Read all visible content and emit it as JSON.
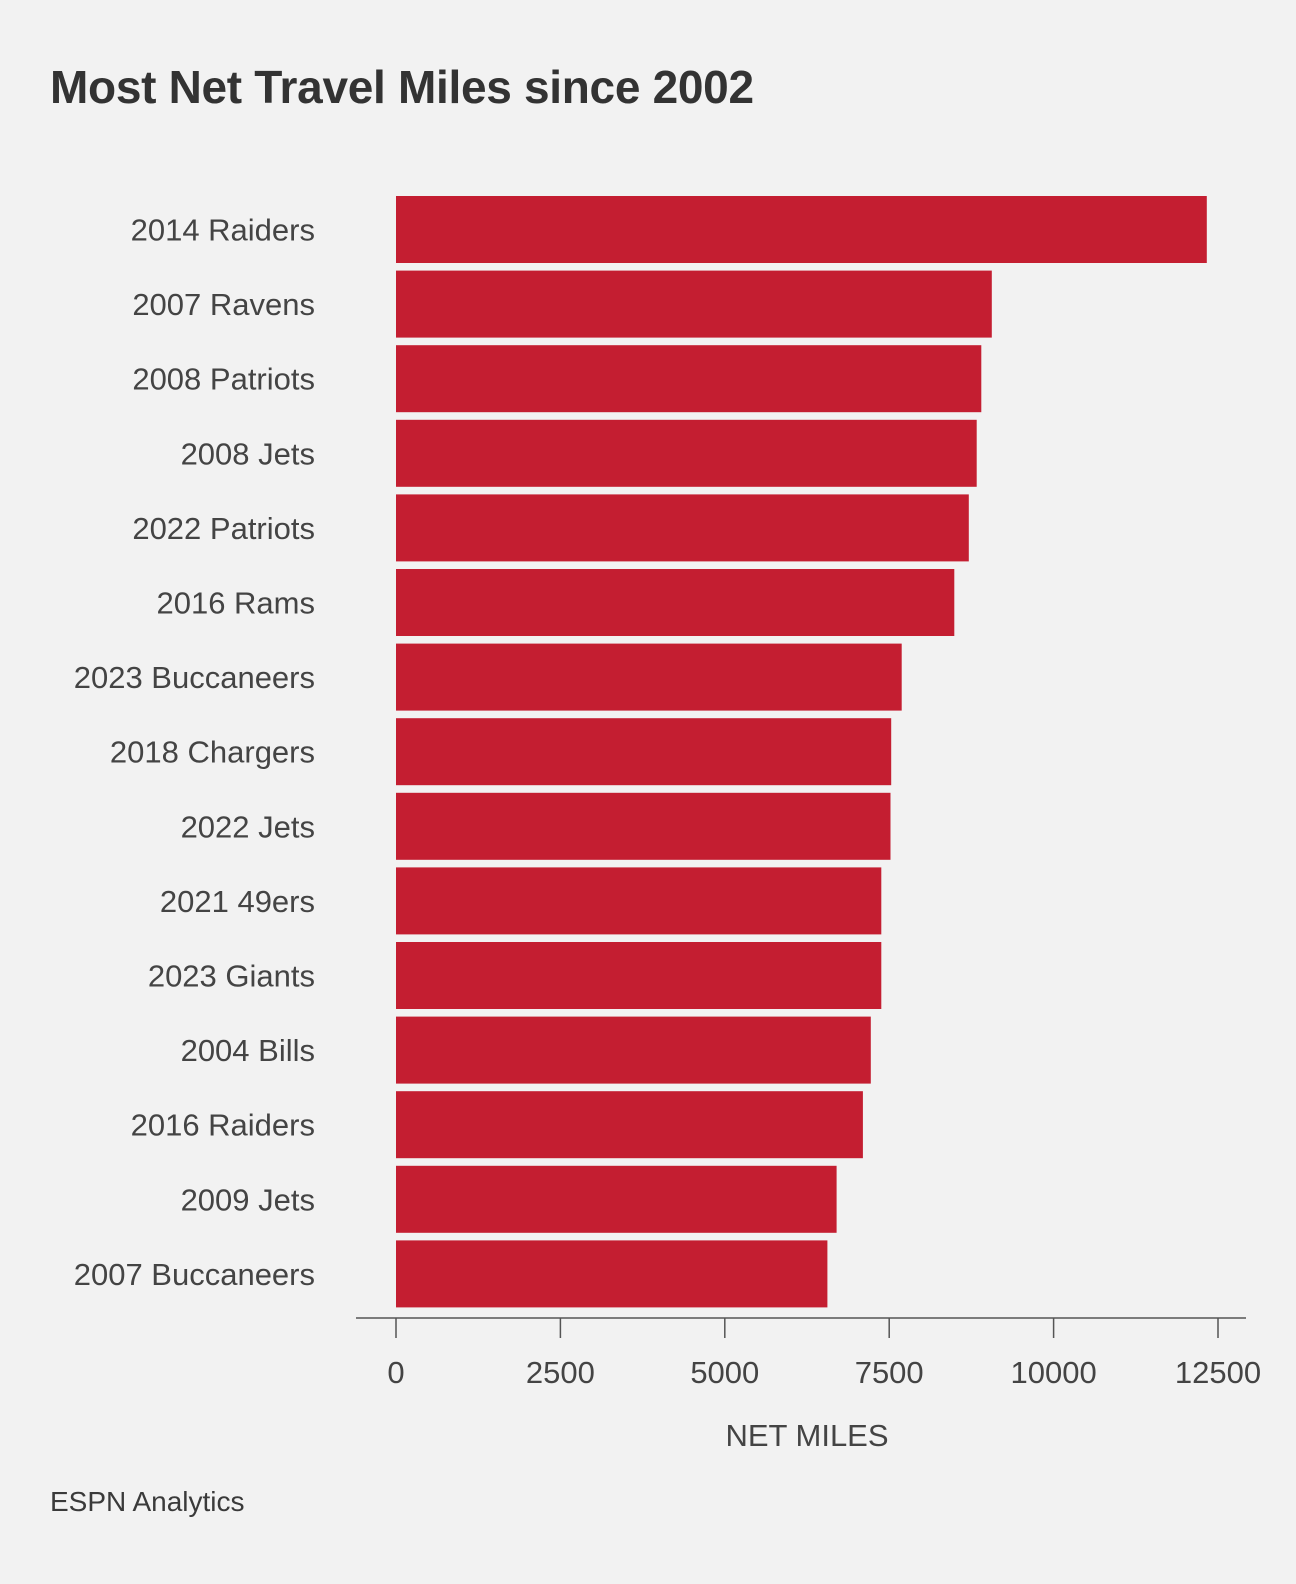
{
  "title": "Most Net Travel Miles since 2002",
  "source": "ESPN Analytics",
  "colors": {
    "bar": "#c41e31",
    "text": "#444444",
    "axis": "#555555",
    "background": "#f2f2f2"
  },
  "chart_data": {
    "type": "bar",
    "orientation": "horizontal",
    "title": "Most Net Travel Miles since 2002",
    "xlabel": "NET MILES",
    "ylabel": "",
    "xlim": [
      0,
      12500
    ],
    "x_ticks": [
      "0",
      "2500",
      "5000",
      "7500",
      "10000",
      "12500"
    ],
    "grid": false,
    "categories": [
      "2014 Raiders",
      "2007 Ravens",
      "2008 Patriots",
      "2008 Jets",
      "2022 Patriots",
      "2016 Rams",
      "2023 Buccaneers",
      "2018 Chargers",
      "2022 Jets",
      "2021 49ers",
      "2023 Giants",
      "2004 Bills",
      "2016 Raiders",
      "2009 Jets",
      "2007 Buccaneers"
    ],
    "values": [
      12330,
      9060,
      8900,
      8830,
      8710,
      8490,
      7690,
      7530,
      7520,
      7380,
      7380,
      7220,
      7100,
      6700,
      6560
    ]
  }
}
